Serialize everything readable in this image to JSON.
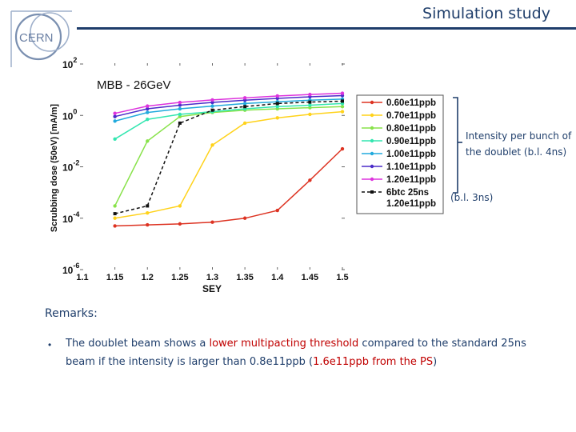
{
  "header": {
    "logo_text": "CERN",
    "title": "Simulation study"
  },
  "chart_data": {
    "type": "line",
    "title": "MBB - 26GeV",
    "xlabel": "SEY",
    "ylabel": "Scrubbing dose (50eV) [mA/m]",
    "y_scale": "log",
    "xlim": [
      1.1,
      1.5
    ],
    "ylim": [
      1e-06,
      100
    ],
    "x": [
      1.15,
      1.2,
      1.25,
      1.3,
      1.35,
      1.4,
      1.45,
      1.5
    ],
    "x_tick_labels": [
      "1.1",
      "1.15",
      "1.2",
      "1.25",
      "1.3",
      "1.35",
      "1.4",
      "1.45",
      "1.5"
    ],
    "y_ticks": [
      {
        "base": "10",
        "exp": "2"
      },
      {
        "base": "10",
        "exp": "0"
      },
      {
        "base": "10",
        "exp": "-2"
      },
      {
        "base": "10",
        "exp": "-4"
      },
      {
        "base": "10",
        "exp": "-6"
      }
    ],
    "series": [
      {
        "name": "0.60e11ppb",
        "color": "#dd3322",
        "marker": "dot",
        "dashed": false,
        "values": [
          5e-05,
          5.5e-05,
          6e-05,
          7e-05,
          0.0001,
          0.0002,
          0.003,
          0.05
        ]
      },
      {
        "name": "0.70e11ppb",
        "color": "#ffd21a",
        "marker": "dot",
        "dashed": false,
        "values": [
          0.0001,
          0.00016,
          0.0003,
          0.07,
          0.5,
          0.8,
          1.1,
          1.4
        ]
      },
      {
        "name": "0.80e11ppb",
        "color": "#88e24a",
        "marker": "dot",
        "dashed": false,
        "values": [
          0.0003,
          0.1,
          0.9,
          1.3,
          1.6,
          1.8,
          2.0,
          2.2
        ]
      },
      {
        "name": "0.90e11ppb",
        "color": "#33e6b0",
        "marker": "dot",
        "dashed": false,
        "values": [
          0.12,
          0.7,
          1.1,
          1.4,
          1.8,
          2.2,
          2.5,
          2.9
        ]
      },
      {
        "name": "1.00e11ppb",
        "color": "#22aadd",
        "marker": "dot",
        "dashed": false,
        "values": [
          0.6,
          1.3,
          1.8,
          2.3,
          2.9,
          3.4,
          3.9,
          4.3
        ]
      },
      {
        "name": "1.10e11ppb",
        "color": "#4b2cc8",
        "marker": "dot",
        "dashed": false,
        "values": [
          0.9,
          1.8,
          2.5,
          3.2,
          3.9,
          4.6,
          5.3,
          5.9
        ]
      },
      {
        "name": "1.20e11ppb",
        "color": "#dd33dd",
        "marker": "dot",
        "dashed": false,
        "values": [
          1.2,
          2.3,
          3.2,
          4.0,
          4.8,
          5.7,
          6.5,
          7.3
        ]
      },
      {
        "name": "6btc 25ns\n1.20e11ppb",
        "color": "#111111",
        "marker": "square",
        "dashed": true,
        "values": [
          0.00015,
          0.0003,
          0.5,
          1.6,
          2.2,
          2.9,
          3.3,
          3.6
        ]
      }
    ]
  },
  "annotations": {
    "intensity_note": "Intensity per bunch of the doublet (b.l. 4ns)",
    "bl_note": "(b.l. 3ns)"
  },
  "remarks": {
    "title": "Remarks:",
    "bullet": "•",
    "text_1": "The doublet beam shows a ",
    "text_hl_1": "lower multipacting threshold",
    "text_2": " compared to the standard 25ns beam if the intensity is larger than 0.8e11ppb (",
    "text_hl_2": "1.6e11ppb from the PS",
    "text_3": ")"
  },
  "colors": {
    "title": "#1f3e6b",
    "highlight": "#c00000",
    "bracket": "#1f3e6b"
  }
}
